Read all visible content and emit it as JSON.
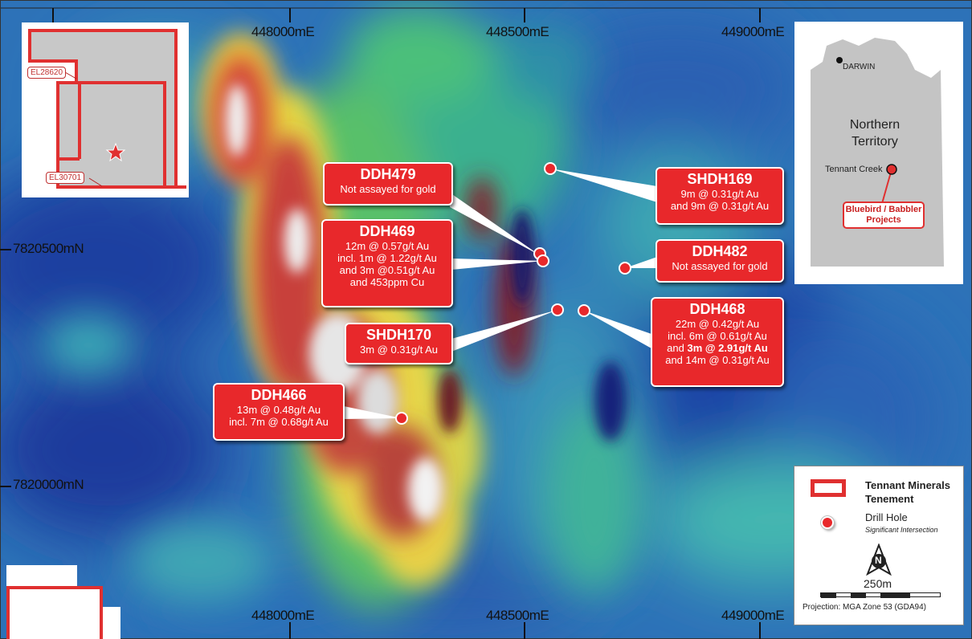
{
  "map": {
    "easting_labels_top": [
      "448000mE",
      "448500mE",
      "449000mE"
    ],
    "easting_labels_bottom": [
      "448000mE",
      "448500mE",
      "449000mE"
    ],
    "northing_labels": [
      "7820500mN",
      "7820000mN"
    ]
  },
  "drill_holes": [
    {
      "id": "DDH479",
      "lines": [
        "Not assayed for gold"
      ]
    },
    {
      "id": "DDH469",
      "lines": [
        "12m @ 0.57g/t Au",
        "incl. 1m @ 1.22g/t Au",
        "and 3m @0.51g/t Au",
        "and 453ppm Cu"
      ]
    },
    {
      "id": "SHDH170",
      "lines": [
        "3m @ 0.31g/t Au"
      ]
    },
    {
      "id": "DDH466",
      "lines": [
        "13m @ 0.48g/t Au",
        "incl. 7m @ 0.68g/t Au"
      ]
    },
    {
      "id": "SHDH169",
      "lines": [
        "9m @ 0.31g/t Au",
        "and 9m @ 0.31g/t Au"
      ]
    },
    {
      "id": "DDH482",
      "lines": [
        "Not assayed for gold"
      ]
    },
    {
      "id": "DDH468",
      "lines": [
        "22m @ 0.42g/t Au",
        "incl. 6m @ 0.61g/t Au",
        "and ",
        "3m @ 2.91g/t Au",
        "and 14m @ 0.31g/t Au"
      ]
    }
  ],
  "tenement_inset": {
    "labels": [
      "EL28620",
      "EL30701"
    ]
  },
  "location_inset": {
    "city": "DARWIN",
    "region": [
      "Northern",
      "Territory"
    ],
    "town": "Tennant Creek",
    "project": [
      "Bluebird / Babbler",
      "Projects"
    ]
  },
  "legend": {
    "tenement": [
      "Tennant Minerals",
      "Tenement"
    ],
    "drill_hole": "Drill Hole",
    "significant": "Significant Intersection",
    "north": "N",
    "scale": "250m",
    "projection": "Projection: MGA Zone 53 (GDA94)"
  },
  "colors": {
    "callout_red": "#e8282b",
    "tenement_red": "#e03030"
  }
}
